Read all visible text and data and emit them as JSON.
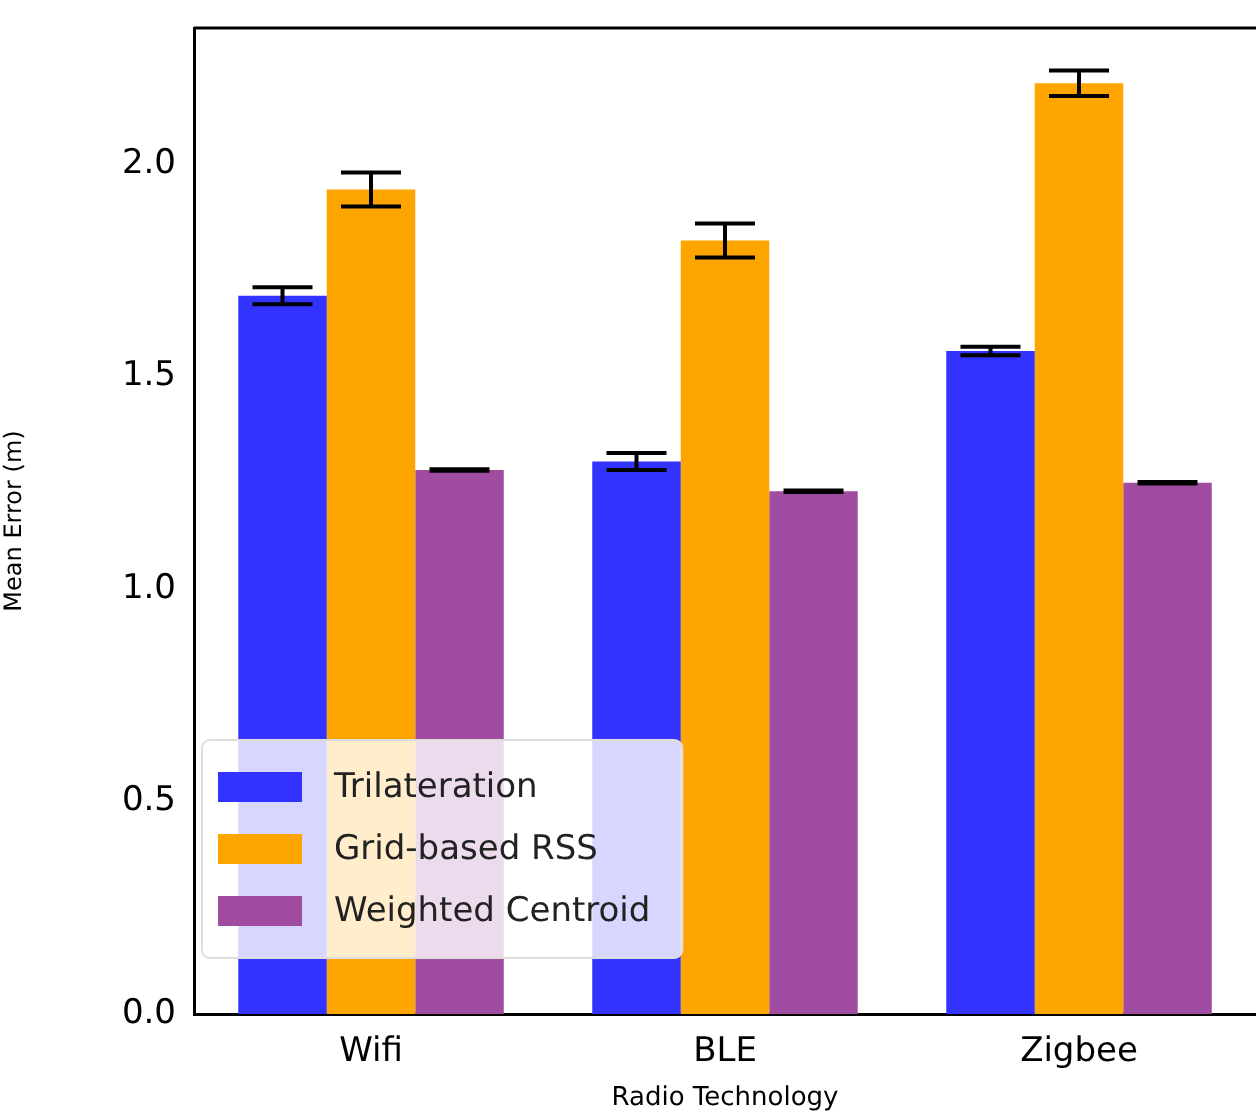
{
  "chart_data": {
    "type": "bar",
    "xlabel": "Radio Technology",
    "ylabel": "Mean Error (m)",
    "categories": [
      "Wifi",
      "BLE",
      "Zigbee"
    ],
    "series": [
      {
        "name": "Trilateration",
        "color": "#3333ff",
        "values": [
          1.69,
          1.3,
          1.56
        ],
        "errors": [
          0.02,
          0.02,
          0.01
        ]
      },
      {
        "name": "Grid-based RSS",
        "color": "#ffa500",
        "values": [
          1.94,
          1.82,
          2.19
        ],
        "errors": [
          0.04,
          0.04,
          0.03
        ]
      },
      {
        "name": "Weighted Centroid",
        "color": "#a04ca0",
        "values": [
          1.28,
          1.23,
          1.25
        ],
        "errors": [
          0.002,
          0.002,
          0.002
        ]
      }
    ],
    "ylim": [
      0,
      2.32
    ],
    "yticks": [
      {
        "value": 0,
        "label": "0.0"
      },
      0.5,
      {
        "value": 1,
        "label": "1.0"
      },
      1.5,
      {
        "value": 2,
        "label": "2.0"
      }
    ],
    "grid": false,
    "legend": "bottom left"
  }
}
